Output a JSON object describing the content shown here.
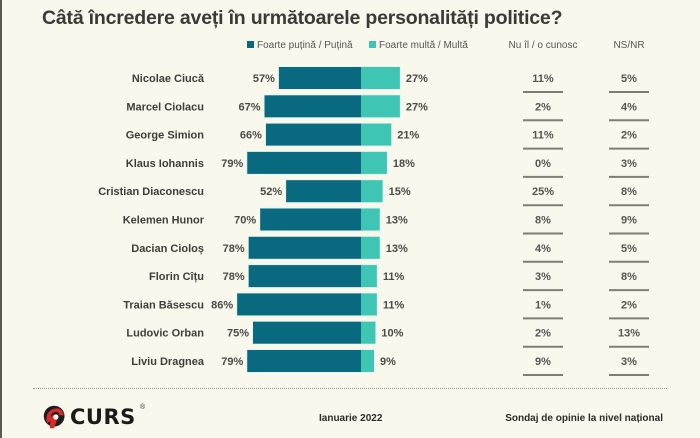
{
  "colors": {
    "low_trust": "#08697f",
    "high_trust": "#3ec5b3",
    "background": "#f9f8ec"
  },
  "chart_data": {
    "type": "bar",
    "orientation": "horizontal-diverging",
    "title": "Câtă încredere aveți în următoarele personalități politice?",
    "legend": [
      "Foarte puțină / Puțină",
      "Foarte multă / Multă"
    ],
    "table_headers": [
      "Nu îl / o cunosc",
      "NS/NR"
    ],
    "unit": "%",
    "categories": [
      "Nicolae Ciucă",
      "Marcel Ciolacu",
      "George Simion",
      "Klaus Iohannis",
      "Cristian Diaconescu",
      "Kelemen Hunor",
      "Dacian Cioloș",
      "Florin Cîțu",
      "Traian Băsescu",
      "Ludovic Orban",
      "Liviu Dragnea"
    ],
    "series": [
      {
        "name": "Foarte puțină / Puțină",
        "values": [
          57,
          67,
          66,
          79,
          52,
          70,
          78,
          78,
          86,
          75,
          79
        ]
      },
      {
        "name": "Foarte multă / Multă",
        "values": [
          27,
          27,
          21,
          18,
          15,
          13,
          13,
          11,
          11,
          10,
          9
        ]
      },
      {
        "name": "Nu îl / o cunosc",
        "values": [
          11,
          2,
          11,
          0,
          25,
          8,
          4,
          3,
          1,
          2,
          9
        ]
      },
      {
        "name": "NS/NR",
        "values": [
          5,
          4,
          2,
          3,
          8,
          9,
          5,
          8,
          2,
          13,
          3
        ]
      }
    ]
  },
  "footer": {
    "brand": "CURS",
    "registered": "®",
    "date": "Ianuarie 2022",
    "survey": "Sondaj de opinie la nivel național"
  }
}
